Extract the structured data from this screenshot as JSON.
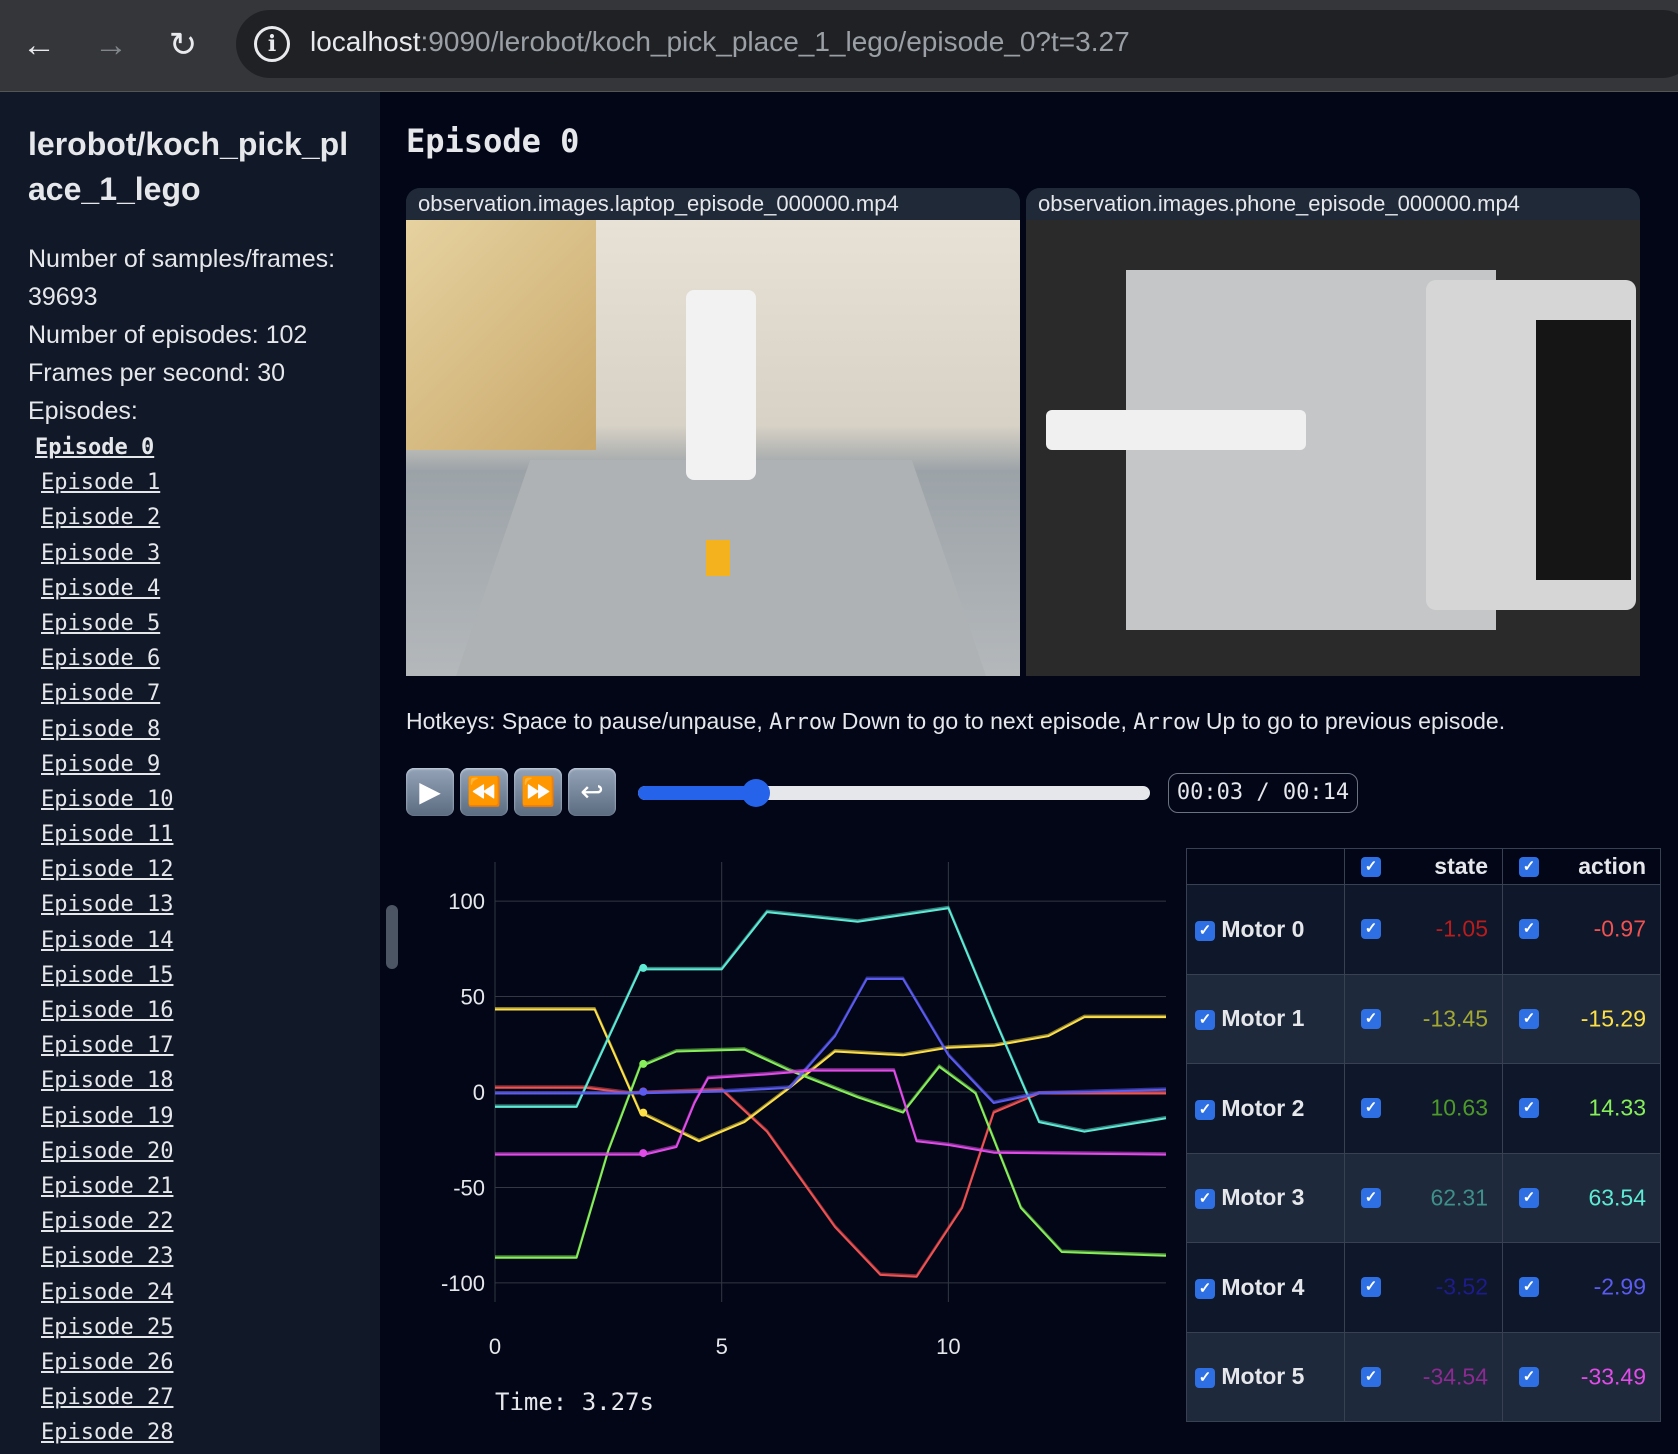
{
  "browser": {
    "url_host": "localhost",
    "url_rest": ":9090/lerobot/koch_pick_place_1_lego/episode_0?t=3.27",
    "back_icon": "arrow-left",
    "forward_icon": "arrow-right",
    "reload_icon": "reload",
    "info_icon": "info"
  },
  "sidebar": {
    "title": "lerobot/koch_pick_place_1_lego",
    "stats": [
      "Number of samples/frames: 39693",
      "Number of episodes: 102",
      "Frames per second: 30",
      "Episodes:"
    ],
    "episodes": [
      "Episode 0",
      "Episode 1",
      "Episode 2",
      "Episode 3",
      "Episode 4",
      "Episode 5",
      "Episode 6",
      "Episode 7",
      "Episode 8",
      "Episode 9",
      "Episode 10",
      "Episode 11",
      "Episode 12",
      "Episode 13",
      "Episode 14",
      "Episode 15",
      "Episode 16",
      "Episode 17",
      "Episode 18",
      "Episode 19",
      "Episode 20",
      "Episode 21",
      "Episode 22",
      "Episode 23",
      "Episode 24",
      "Episode 25",
      "Episode 26",
      "Episode 27",
      "Episode 28"
    ],
    "active_episode": "Episode 0"
  },
  "main": {
    "title": "Episode 0",
    "videos": [
      "observation.images.laptop_episode_000000.mp4",
      "observation.images.phone_episode_000000.mp4"
    ],
    "hotkeys": {
      "p1": "Hotkeys: Space to pause/unpause, ",
      "k1": "Arrow",
      "p2": " Down to go to next episode, ",
      "k2": "Arrow",
      "p3": " Up to go to previous episode."
    },
    "player": {
      "time": "00:03 / 00:14",
      "progress": 0.23,
      "buttons": [
        "play",
        "rewind",
        "fast-forward",
        "loop"
      ]
    },
    "time_label": "Time: 3.27s"
  },
  "table": {
    "headers": [
      "state",
      "action"
    ],
    "rows": [
      {
        "label": "Motor 0",
        "state": "-1.05",
        "action": "-0.97"
      },
      {
        "label": "Motor 1",
        "state": "-13.45",
        "action": "-15.29"
      },
      {
        "label": "Motor 2",
        "state": "10.63",
        "action": "14.33"
      },
      {
        "label": "Motor 3",
        "state": "62.31",
        "action": "63.54"
      },
      {
        "label": "Motor 4",
        "state": "-3.52",
        "action": "-2.99"
      },
      {
        "label": "Motor 5",
        "state": "-34.54",
        "action": "-33.49"
      }
    ],
    "state_colors": [
      "#b91c1c",
      "#a3a833",
      "#4d9a2a",
      "#3f8f8a",
      "#1e1b8a",
      "#8b2a91"
    ],
    "action_colors": [
      "#f05252",
      "#fde047",
      "#86ef5a",
      "#5eead4",
      "#5b5bf0",
      "#e14ce9"
    ]
  },
  "chart_data": {
    "type": "line",
    "xlim": [
      0,
      14.8
    ],
    "ylim": [
      -110,
      110
    ],
    "xticks": [
      0,
      5,
      10
    ],
    "yticks": [
      100,
      50,
      0,
      -50,
      -100
    ],
    "grid": true,
    "cursor_time": 3.27,
    "series": [
      {
        "color": "#f05252",
        "x": [
          0,
          2,
          3,
          5,
          6,
          7.5,
          8.5,
          9.3,
          10.3,
          11,
          12,
          14.8
        ],
        "y": [
          3,
          3,
          0,
          2,
          -20,
          -70,
          -95,
          -96,
          -60,
          -10,
          0,
          0
        ]
      },
      {
        "color": "#fde047",
        "x": [
          0,
          2.2,
          3.2,
          4.5,
          5.5,
          6.5,
          7.5,
          9,
          10,
          11,
          12.2,
          13,
          14.8
        ],
        "y": [
          44,
          44,
          -10,
          -25,
          -15,
          3,
          22,
          20,
          24,
          25,
          30,
          40,
          40
        ]
      },
      {
        "color": "#86ef5a",
        "x": [
          0,
          1.8,
          2.5,
          3.2,
          4,
          5.5,
          6.5,
          8,
          9,
          9.8,
          10.6,
          11.6,
          12.5,
          14.8
        ],
        "y": [
          -86,
          -86,
          -30,
          14,
          22,
          23,
          12,
          -2,
          -10,
          14,
          0,
          -60,
          -83,
          -85
        ]
      },
      {
        "color": "#5eead4",
        "x": [
          0,
          1.8,
          3.2,
          5,
          6,
          8,
          10,
          11,
          12,
          13,
          14.8
        ],
        "y": [
          -7,
          -7,
          65,
          65,
          95,
          90,
          97,
          40,
          -15,
          -20,
          -13
        ]
      },
      {
        "color": "#5b5bf0",
        "x": [
          0,
          3,
          5,
          6.5,
          7.5,
          8.2,
          9,
          10,
          11,
          12,
          14.8
        ],
        "y": [
          0,
          0,
          1,
          3,
          30,
          60,
          60,
          20,
          -5,
          0,
          2
        ]
      },
      {
        "color": "#e14ce9",
        "x": [
          0,
          3.3,
          4,
          4.4,
          4.7,
          6,
          7,
          8.8,
          9.3,
          10,
          11,
          14.8
        ],
        "y": [
          -32,
          -32,
          -28,
          -5,
          8,
          10,
          12,
          12,
          -25,
          -27,
          -31,
          -32
        ]
      }
    ]
  }
}
